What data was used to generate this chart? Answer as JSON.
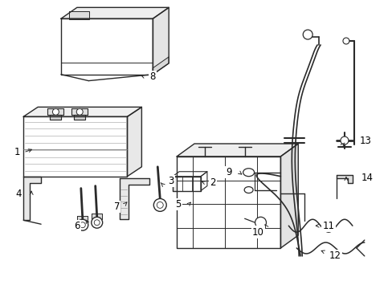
{
  "background_color": "#ffffff",
  "line_color": "#2a2a2a",
  "label_color": "#000000",
  "fig_w": 4.89,
  "fig_h": 3.6,
  "dpi": 100
}
